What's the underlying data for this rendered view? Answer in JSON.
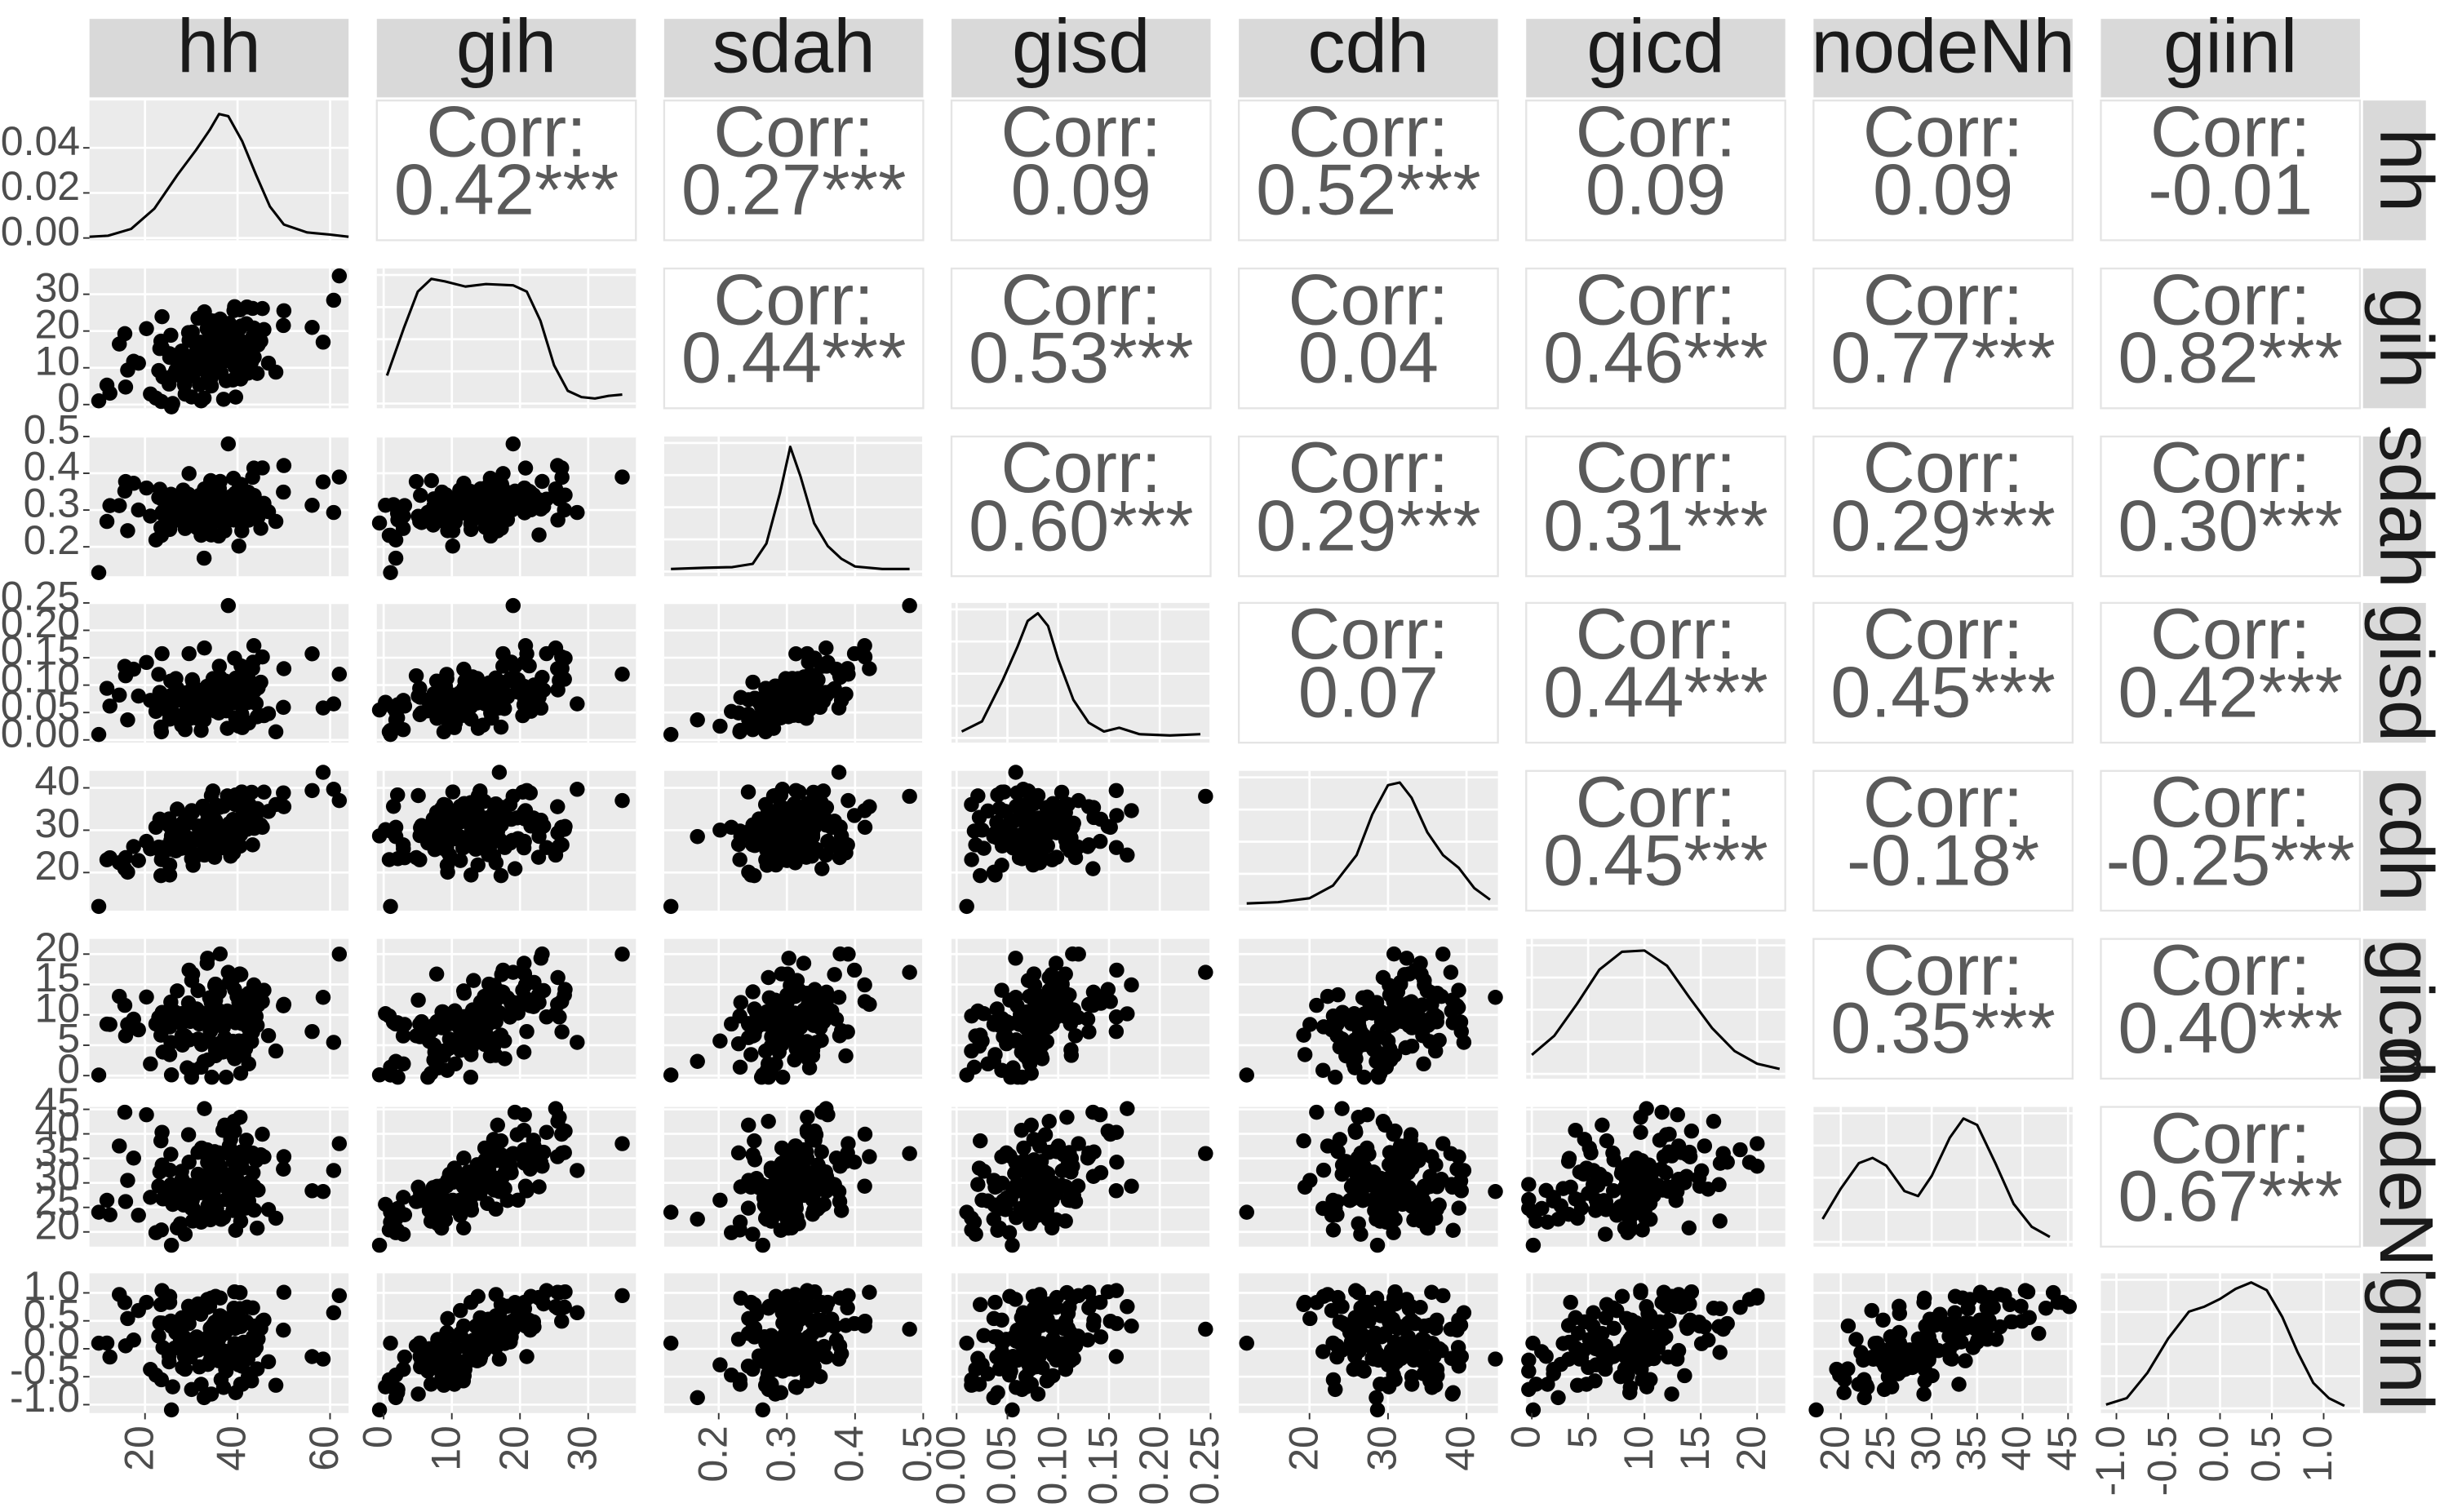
{
  "chart_data": {
    "type": "scatter",
    "title": "",
    "variables": [
      "hh",
      "gih",
      "sdah",
      "gisd",
      "cdh",
      "gicd",
      "nodeNh",
      "giinl"
    ],
    "corr_label": "Corr:",
    "correlations": [
      {
        "row": "hh",
        "col": "gih",
        "value": "0.42***"
      },
      {
        "row": "hh",
        "col": "sdah",
        "value": "0.27***"
      },
      {
        "row": "hh",
        "col": "gisd",
        "value": "0.09"
      },
      {
        "row": "hh",
        "col": "cdh",
        "value": "0.52***"
      },
      {
        "row": "hh",
        "col": "gicd",
        "value": "0.09"
      },
      {
        "row": "hh",
        "col": "nodeNh",
        "value": "0.09"
      },
      {
        "row": "hh",
        "col": "giinl",
        "value": "-0.01"
      },
      {
        "row": "gih",
        "col": "sdah",
        "value": "0.44***"
      },
      {
        "row": "gih",
        "col": "gisd",
        "value": "0.53***"
      },
      {
        "row": "gih",
        "col": "cdh",
        "value": "0.04"
      },
      {
        "row": "gih",
        "col": "gicd",
        "value": "0.46***"
      },
      {
        "row": "gih",
        "col": "nodeNh",
        "value": "0.77***"
      },
      {
        "row": "gih",
        "col": "giinl",
        "value": "0.82***"
      },
      {
        "row": "sdah",
        "col": "gisd",
        "value": "0.60***"
      },
      {
        "row": "sdah",
        "col": "cdh",
        "value": "0.29***"
      },
      {
        "row": "sdah",
        "col": "gicd",
        "value": "0.31***"
      },
      {
        "row": "sdah",
        "col": "nodeNh",
        "value": "0.29***"
      },
      {
        "row": "sdah",
        "col": "giinl",
        "value": "0.30***"
      },
      {
        "row": "gisd",
        "col": "cdh",
        "value": "0.07"
      },
      {
        "row": "gisd",
        "col": "gicd",
        "value": "0.44***"
      },
      {
        "row": "gisd",
        "col": "nodeNh",
        "value": "0.45***"
      },
      {
        "row": "gisd",
        "col": "giinl",
        "value": "0.42***"
      },
      {
        "row": "cdh",
        "col": "gicd",
        "value": "0.45***"
      },
      {
        "row": "cdh",
        "col": "nodeNh",
        "value": "-0.18*"
      },
      {
        "row": "cdh",
        "col": "giinl",
        "value": "-0.25***"
      },
      {
        "row": "gicd",
        "col": "nodeNh",
        "value": "0.35***"
      },
      {
        "row": "gicd",
        "col": "giinl",
        "value": "0.40***"
      },
      {
        "row": "nodeNh",
        "col": "giinl",
        "value": "0.67***"
      }
    ],
    "axes": {
      "hh": {
        "range": [
          8,
          64
        ],
        "ticks": [
          "20",
          "40",
          "60"
        ],
        "tick_values": [
          20,
          40,
          60
        ]
      },
      "gih": {
        "range": [
          -1,
          37
        ],
        "ticks": [
          "0",
          "10",
          "20",
          "30"
        ],
        "tick_values": [
          0,
          10,
          20,
          30
        ]
      },
      "sdah": {
        "range": [
          0.12,
          0.5
        ],
        "ticks": [
          "0.2",
          "0.3",
          "0.4",
          "0.5"
        ],
        "tick_values": [
          0.2,
          0.3,
          0.4,
          0.5
        ]
      },
      "gisd": {
        "range": [
          -0.005,
          0.25
        ],
        "ticks": [
          "0.00",
          "0.05",
          "0.10",
          "0.15",
          "0.20",
          "0.25"
        ],
        "tick_values": [
          0,
          0.05,
          0.1,
          0.15,
          0.2,
          0.25
        ]
      },
      "cdh": {
        "range": [
          11,
          44
        ],
        "ticks": [
          "20",
          "30",
          "40"
        ],
        "tick_values": [
          20,
          30,
          40
        ]
      },
      "gicd": {
        "range": [
          -0.5,
          22.5
        ],
        "ticks": [
          "0",
          "5",
          "10",
          "15",
          "20"
        ],
        "tick_values": [
          0,
          5,
          10,
          15,
          20
        ]
      },
      "nodeNh": {
        "range": [
          17,
          45.5
        ],
        "ticks": [
          "20",
          "25",
          "30",
          "35",
          "40",
          "45"
        ],
        "tick_values": [
          20,
          25,
          30,
          35,
          40,
          45
        ]
      },
      "giinl": {
        "range": [
          -1.15,
          1.35
        ],
        "ticks": [
          "-1.0",
          "-0.5",
          "0.0",
          "0.5",
          "1.0"
        ],
        "tick_values": [
          -1,
          -0.5,
          0,
          0.5,
          1
        ]
      }
    },
    "density_y_axis": {
      "ticks": [
        "0.00",
        "0.02",
        "0.04"
      ],
      "tick_values": [
        0,
        0.02,
        0.04
      ],
      "range": [
        -0.001,
        0.061
      ]
    },
    "diagonal_density_shapes": {
      "hh": [
        [
          8,
          0.0005
        ],
        [
          12,
          0.001
        ],
        [
          17,
          0.004
        ],
        [
          22,
          0.013
        ],
        [
          27,
          0.028
        ],
        [
          31,
          0.039
        ],
        [
          34,
          0.048
        ],
        [
          36,
          0.055
        ],
        [
          38,
          0.054
        ],
        [
          41,
          0.043
        ],
        [
          44,
          0.028
        ],
        [
          47,
          0.014
        ],
        [
          50,
          0.006
        ],
        [
          55,
          0.0025
        ],
        [
          60,
          0.0015
        ],
        [
          64,
          0.0005
        ]
      ],
      "gih": [
        [
          0.5,
          0.22
        ],
        [
          3,
          0.6
        ],
        [
          5,
          0.88
        ],
        [
          7,
          0.98
        ],
        [
          9,
          0.96
        ],
        [
          12,
          0.92
        ],
        [
          15,
          0.94
        ],
        [
          19,
          0.93
        ],
        [
          21,
          0.88
        ],
        [
          23,
          0.65
        ],
        [
          25,
          0.3
        ],
        [
          27,
          0.1
        ],
        [
          29,
          0.05
        ],
        [
          31,
          0.04
        ],
        [
          33,
          0.06
        ],
        [
          35,
          0.07
        ]
      ],
      "sdah": [
        [
          0.13,
          0.02
        ],
        [
          0.18,
          0.03
        ],
        [
          0.22,
          0.035
        ],
        [
          0.25,
          0.06
        ],
        [
          0.27,
          0.22
        ],
        [
          0.29,
          0.62
        ],
        [
          0.305,
          0.98
        ],
        [
          0.32,
          0.75
        ],
        [
          0.34,
          0.38
        ],
        [
          0.36,
          0.2
        ],
        [
          0.38,
          0.1
        ],
        [
          0.4,
          0.04
        ],
        [
          0.44,
          0.02
        ],
        [
          0.48,
          0.02
        ]
      ],
      "gisd": [
        [
          0.005,
          0.05
        ],
        [
          0.025,
          0.13
        ],
        [
          0.045,
          0.45
        ],
        [
          0.06,
          0.72
        ],
        [
          0.07,
          0.92
        ],
        [
          0.08,
          0.98
        ],
        [
          0.09,
          0.88
        ],
        [
          0.1,
          0.62
        ],
        [
          0.115,
          0.3
        ],
        [
          0.13,
          0.12
        ],
        [
          0.145,
          0.05
        ],
        [
          0.16,
          0.08
        ],
        [
          0.18,
          0.03
        ],
        [
          0.21,
          0.02
        ],
        [
          0.24,
          0.03
        ]
      ],
      "cdh": [
        [
          12,
          0.02
        ],
        [
          16,
          0.03
        ],
        [
          20,
          0.06
        ],
        [
          23,
          0.16
        ],
        [
          26,
          0.4
        ],
        [
          28,
          0.72
        ],
        [
          30,
          0.95
        ],
        [
          31.5,
          0.97
        ],
        [
          33,
          0.85
        ],
        [
          35,
          0.58
        ],
        [
          37,
          0.4
        ],
        [
          39,
          0.3
        ],
        [
          41,
          0.14
        ],
        [
          43,
          0.05
        ]
      ],
      "gicd": [
        [
          0,
          0.15
        ],
        [
          2,
          0.3
        ],
        [
          4,
          0.55
        ],
        [
          6,
          0.82
        ],
        [
          8,
          0.96
        ],
        [
          10,
          0.97
        ],
        [
          12,
          0.85
        ],
        [
          14,
          0.6
        ],
        [
          16,
          0.36
        ],
        [
          18,
          0.18
        ],
        [
          20,
          0.08
        ],
        [
          22,
          0.04
        ]
      ],
      "nodeNh": [
        [
          18,
          0.18
        ],
        [
          20,
          0.42
        ],
        [
          22,
          0.62
        ],
        [
          23.5,
          0.66
        ],
        [
          25,
          0.6
        ],
        [
          27,
          0.4
        ],
        [
          28.5,
          0.36
        ],
        [
          30,
          0.52
        ],
        [
          32,
          0.82
        ],
        [
          33.5,
          0.97
        ],
        [
          35,
          0.92
        ],
        [
          37,
          0.62
        ],
        [
          39,
          0.3
        ],
        [
          41,
          0.12
        ],
        [
          43,
          0.04
        ]
      ],
      "giinl": [
        [
          -1.1,
          0.03
        ],
        [
          -0.9,
          0.08
        ],
        [
          -0.7,
          0.28
        ],
        [
          -0.5,
          0.55
        ],
        [
          -0.3,
          0.76
        ],
        [
          -0.15,
          0.8
        ],
        [
          0.0,
          0.86
        ],
        [
          0.15,
          0.94
        ],
        [
          0.3,
          0.99
        ],
        [
          0.45,
          0.93
        ],
        [
          0.6,
          0.72
        ],
        [
          0.75,
          0.44
        ],
        [
          0.9,
          0.2
        ],
        [
          1.05,
          0.08
        ],
        [
          1.2,
          0.02
        ]
      ]
    },
    "grid": true,
    "legend": "none"
  }
}
